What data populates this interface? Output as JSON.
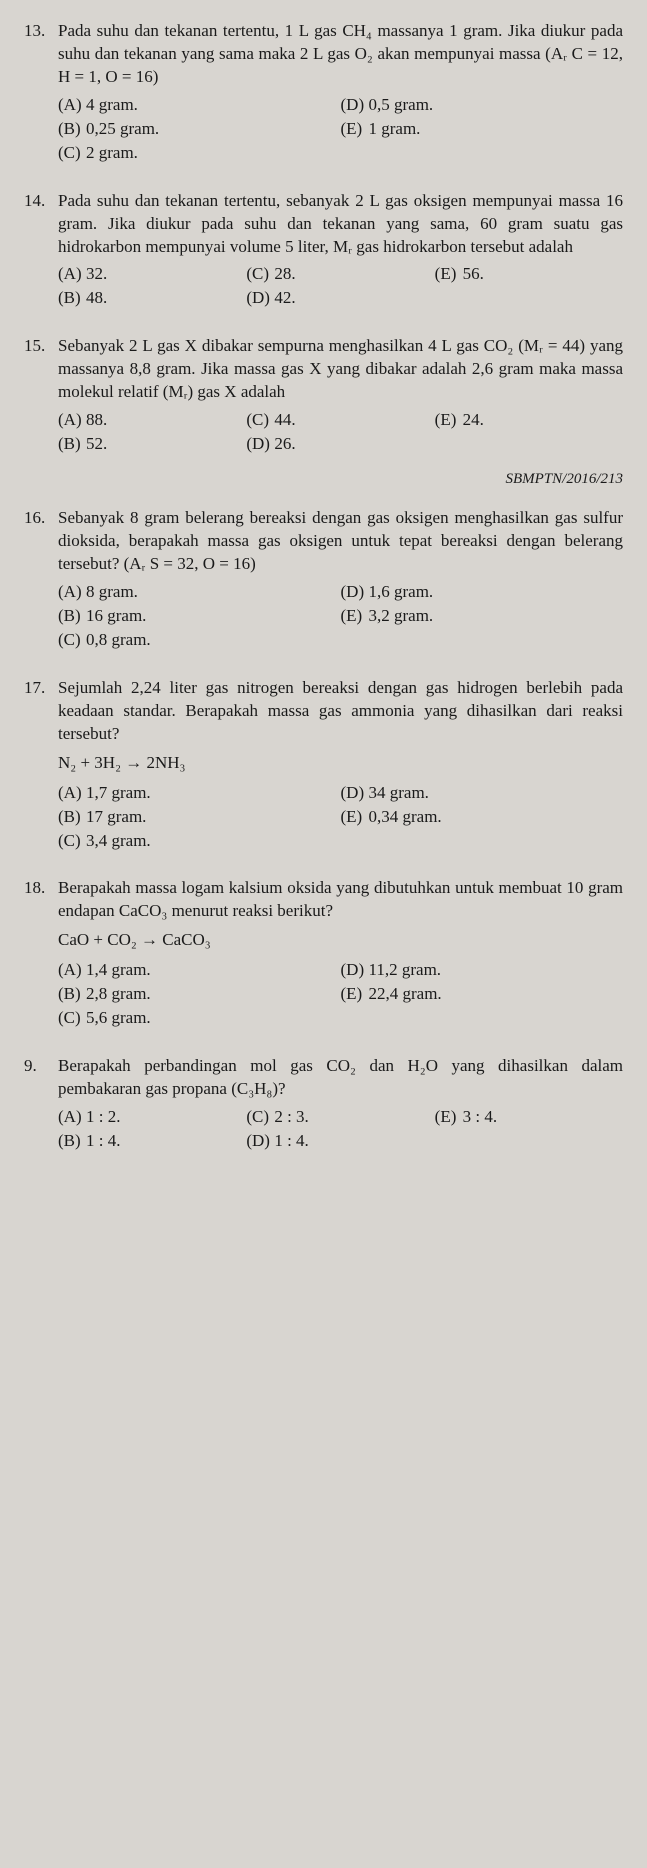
{
  "font": {
    "family": "Times New Roman",
    "base_size_pt": 17,
    "color": "#1a1a1a"
  },
  "background_color": "#d8d5d0",
  "questions": [
    {
      "num": "13.",
      "text": "Pada suhu dan tekanan tertentu, 1 L gas CH₄ massanya 1 gram. Jika diukur pada suhu dan tekanan yang sama maka 2 L gas O₂ akan mempunyai massa (Aᵣ C = 12, H = 1, O = 16)",
      "layout": "2col",
      "choices_left": [
        {
          "label": "(A)",
          "text": "4 gram."
        },
        {
          "label": "(B)",
          "text": "0,25 gram."
        },
        {
          "label": "(C)",
          "text": "2 gram."
        }
      ],
      "choices_right": [
        {
          "label": "(D)",
          "text": "0,5 gram."
        },
        {
          "label": "(E)",
          "text": "1 gram."
        }
      ]
    },
    {
      "num": "14.",
      "text": "Pada suhu dan tekanan tertentu, sebanyak 2 L gas oksigen mempunyai massa 16 gram. Jika diukur pada suhu dan tekanan yang sama, 60 gram suatu gas hidrokarbon mempunyai volume 5 liter, Mᵣ gas hidrokarbon tersebut adalah",
      "layout": "3col",
      "choices_col1": [
        {
          "label": "(A)",
          "text": "32."
        },
        {
          "label": "(B)",
          "text": "48."
        }
      ],
      "choices_col2": [
        {
          "label": "(C)",
          "text": "28."
        },
        {
          "label": "(D)",
          "text": "42."
        }
      ],
      "choices_col3": [
        {
          "label": "(E)",
          "text": "56."
        }
      ]
    },
    {
      "num": "15.",
      "text": "Sebanyak 2 L gas X dibakar sempurna menghasilkan 4 L gas CO₂ (Mᵣ = 44) yang massanya 8,8 gram. Jika massa gas X yang dibakar adalah 2,6 gram maka massa molekul relatif (Mᵣ) gas X adalah",
      "layout": "3col",
      "choices_col1": [
        {
          "label": "(A)",
          "text": "88."
        },
        {
          "label": "(B)",
          "text": "52."
        }
      ],
      "choices_col2": [
        {
          "label": "(C)",
          "text": "44."
        },
        {
          "label": "(D)",
          "text": "26."
        }
      ],
      "choices_col3": [
        {
          "label": "(E)",
          "text": "24."
        }
      ],
      "source": "SBMPTN/2016/213"
    },
    {
      "num": "16.",
      "text": "Sebanyak 8 gram belerang bereaksi dengan gas oksigen menghasilkan gas sulfur dioksida, berapakah massa gas oksigen untuk tepat bereaksi dengan belerang tersebut? (Aᵣ S = 32, O = 16)",
      "layout": "2col",
      "choices_left": [
        {
          "label": "(A)",
          "text": "8 gram."
        },
        {
          "label": "(B)",
          "text": "16 gram."
        },
        {
          "label": "(C)",
          "text": "0,8 gram."
        }
      ],
      "choices_right": [
        {
          "label": "(D)",
          "text": "1,6 gram."
        },
        {
          "label": "(E)",
          "text": "3,2 gram."
        }
      ]
    },
    {
      "num": "17.",
      "text": "Sejumlah 2,24 liter gas nitrogen bereaksi dengan gas hidrogen berlebih pada keadaan standar. Berapakah massa gas ammonia yang dihasilkan dari reaksi tersebut?",
      "reaction": "N₂ + 3H₂ → 2NH₃",
      "layout": "2col",
      "choices_left": [
        {
          "label": "(A)",
          "text": "1,7 gram."
        },
        {
          "label": "(B)",
          "text": "17 gram."
        },
        {
          "label": "(C)",
          "text": "3,4 gram."
        }
      ],
      "choices_right": [
        {
          "label": "(D)",
          "text": "34 gram."
        },
        {
          "label": "(E)",
          "text": "0,34 gram."
        }
      ]
    },
    {
      "num": "18.",
      "text": "Berapakah massa logam kalsium oksida yang dibutuhkan untuk membuat 10 gram endapan CaCO₃ menurut reaksi berikut?",
      "reaction": "CaO + CO₂ → CaCO₃",
      "layout": "2col",
      "choices_left": [
        {
          "label": "(A)",
          "text": "1,4 gram."
        },
        {
          "label": "(B)",
          "text": "2,8 gram."
        },
        {
          "label": "(C)",
          "text": "5,6 gram."
        }
      ],
      "choices_right": [
        {
          "label": "(D)",
          "text": "11,2 gram."
        },
        {
          "label": "(E)",
          "text": "22,4 gram."
        }
      ]
    },
    {
      "num": "9.",
      "text": "Berapakah perbandingan mol gas CO₂ dan H₂O yang dihasilkan dalam pembakaran gas propana (C₃H₈)?",
      "layout": "3col",
      "choices_col1": [
        {
          "label": "(A)",
          "text": "1 : 2."
        },
        {
          "label": "(B)",
          "text": "1 : 4."
        }
      ],
      "choices_col2": [
        {
          "label": "(C)",
          "text": "2 : 3."
        },
        {
          "label": "(D)",
          "text": "1 : 4."
        }
      ],
      "choices_col3": [
        {
          "label": "(E)",
          "text": "3 : 4."
        }
      ]
    }
  ]
}
